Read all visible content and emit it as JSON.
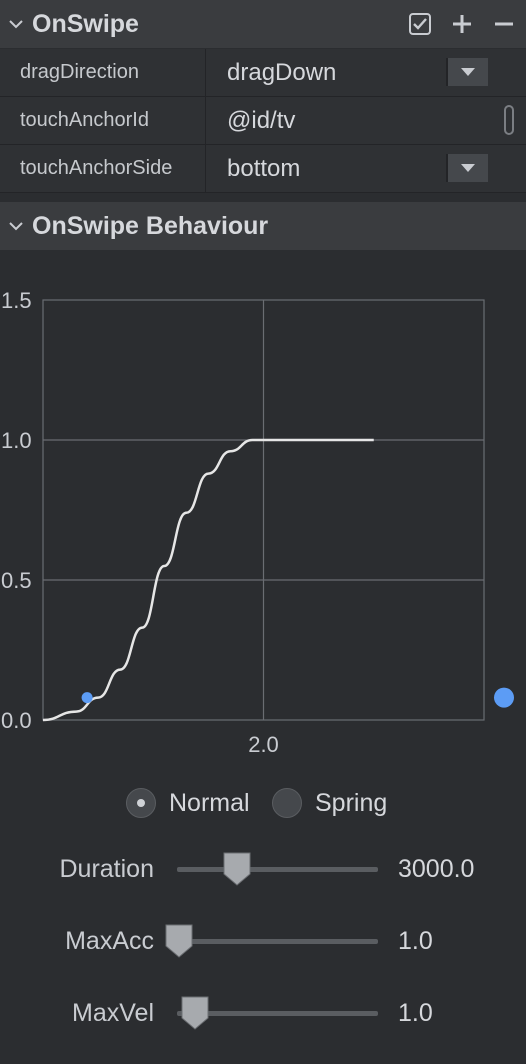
{
  "onswipe": {
    "title": "OnSwipe",
    "actions": [
      "checkbox-icon",
      "plus-icon",
      "minus-icon"
    ],
    "properties": [
      {
        "name": "dragDirection",
        "value": "dragDown",
        "control": "dropdown"
      },
      {
        "name": "touchAnchorId",
        "value": "@id/tv",
        "control": "text"
      },
      {
        "name": "touchAnchorSide",
        "value": "bottom",
        "control": "dropdown"
      }
    ]
  },
  "behaviour": {
    "title": "OnSwipe Behaviour",
    "mode_options": [
      {
        "label": "Normal",
        "selected": true
      },
      {
        "label": "Spring",
        "selected": false
      }
    ],
    "sliders": [
      {
        "label": "Duration",
        "value": "3000.0",
        "fraction": 0.29
      },
      {
        "label": "MaxAcc",
        "value": "1.0",
        "fraction": 0.0
      },
      {
        "label": "MaxVel",
        "value": "1.0",
        "fraction": 0.08
      }
    ]
  },
  "colors": {
    "accent": "#5c9cf5",
    "curve": "#e6e6e6",
    "grid": "#6a6d72",
    "panel_bg": "#2b2d30",
    "header_bg": "#3a3c3f"
  },
  "chart_data": {
    "type": "line",
    "title": "",
    "xlabel": "",
    "ylabel": "",
    "xlim": [
      0,
      4.0
    ],
    "ylim": [
      0,
      1.5
    ],
    "x_ticks": [
      "2.0"
    ],
    "y_ticks": [
      "0.0",
      "0.5",
      "1.0",
      "1.5"
    ],
    "grid": true,
    "series": [
      {
        "x": [
          0,
          0.3,
          0.5,
          0.7,
          0.9,
          1.1,
          1.3,
          1.5,
          1.7,
          1.9,
          2.0,
          3.0
        ],
        "y": [
          0,
          0.03,
          0.08,
          0.18,
          0.33,
          0.55,
          0.74,
          0.88,
          0.96,
          1.0,
          1.0,
          1.0
        ]
      }
    ],
    "marker_point": {
      "x": 0.4,
      "y": 0.08
    }
  }
}
